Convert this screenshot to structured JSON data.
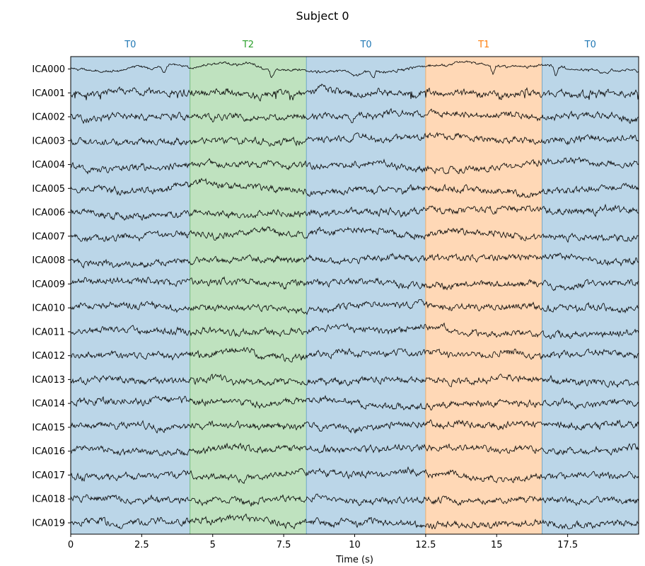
{
  "chart_data": {
    "type": "line",
    "title": "Subject 0",
    "xlabel": "Time (s)",
    "ylabel": "",
    "xlim": [
      0,
      20
    ],
    "x_ticks": [
      0,
      2.5,
      5,
      7.5,
      10,
      12.5,
      15,
      17.5
    ],
    "x_tick_labels": [
      "0",
      "2.5",
      "5",
      "7.5",
      "10",
      "12.5",
      "15",
      "17.5"
    ],
    "channels": [
      "ICA000",
      "ICA001",
      "ICA002",
      "ICA003",
      "ICA004",
      "ICA005",
      "ICA006",
      "ICA007",
      "ICA008",
      "ICA009",
      "ICA010",
      "ICA011",
      "ICA012",
      "ICA013",
      "ICA014",
      "ICA015",
      "ICA016",
      "ICA017",
      "ICA018",
      "ICA019"
    ],
    "annotations": [
      {
        "label": "T0",
        "start": 0.0,
        "end": 4.2,
        "color": "#1f77b4"
      },
      {
        "label": "T2",
        "start": 4.2,
        "end": 8.3,
        "color": "#2ca02c"
      },
      {
        "label": "T0",
        "start": 8.3,
        "end": 12.5,
        "color": "#1f77b4"
      },
      {
        "label": "T1",
        "start": 12.5,
        "end": 16.6,
        "color": "#ff7f0e"
      },
      {
        "label": "T0",
        "start": 16.6,
        "end": 20.0,
        "color": "#1f77b4"
      }
    ],
    "trace_color": "#000000",
    "grid": false
  }
}
